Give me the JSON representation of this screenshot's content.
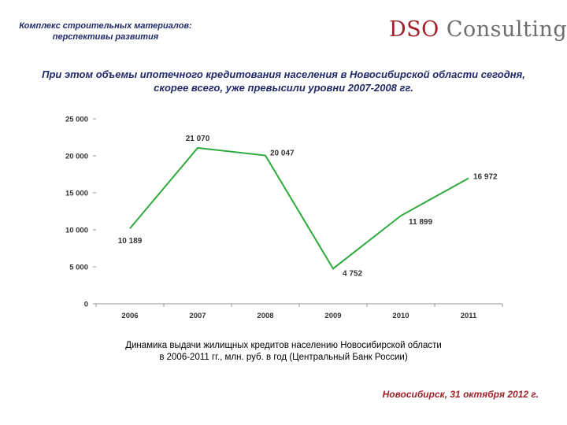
{
  "header": {
    "subtitle_line1": "Комплекс строительных материалов:",
    "subtitle_line2": "перспективы развития"
  },
  "logo": {
    "part1": "DSO",
    "part2": "Consulting"
  },
  "headline": {
    "line1": "При этом объемы ипотечного кредитования населения в Новосибирской области сегодня,",
    "line2": "скорее всего, уже превысили уровни 2007-2008 гг."
  },
  "caption": {
    "line1": "Динамика выдачи жилищных кредитов населению Новосибирской области",
    "line2": "в 2006-2011 гг., млн. руб. в год (Центральный Банк России)"
  },
  "footer": {
    "text": "Новосибирск, 31 октября 2012 г."
  },
  "colors": {
    "line": "#2eaa3e",
    "brand_red": "#a0212a",
    "title_blue": "#1f2a6b"
  },
  "chart_data": {
    "type": "line",
    "categories": [
      "2006",
      "2007",
      "2008",
      "2009",
      "2010",
      "2011"
    ],
    "values": [
      10189,
      21070,
      20047,
      4752,
      11899,
      16972
    ],
    "value_labels": [
      "10 189",
      "21 070",
      "20 047",
      "4 752",
      "11 899",
      "16 972"
    ],
    "y_ticks": [
      0,
      5000,
      10000,
      15000,
      20000,
      25000
    ],
    "y_tick_labels": [
      "0",
      "5 000",
      "10 000",
      "15 000",
      "20 000",
      "25 000"
    ],
    "ylim": [
      0,
      25000
    ],
    "title": "",
    "xlabel": "",
    "ylabel": "",
    "grid": false
  }
}
